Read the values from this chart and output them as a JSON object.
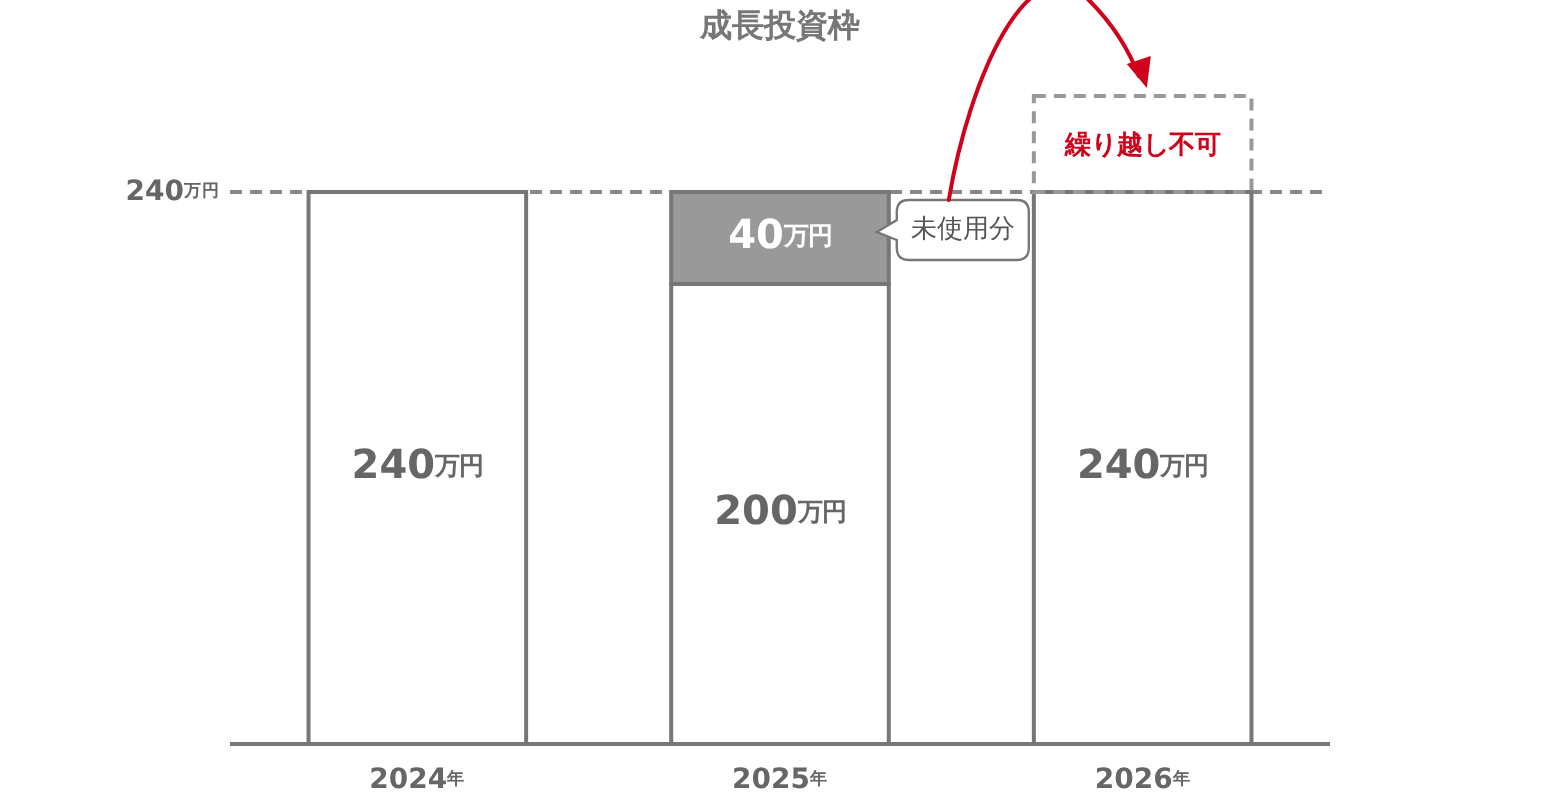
{
  "chart_data": {
    "type": "bar",
    "title": "成長投資枠",
    "categories": [
      "2024年",
      "2025年",
      "2026年"
    ],
    "stacked": true,
    "series": [
      {
        "color": "#ffffff",
        "values": [
          240,
          200,
          240
        ],
        "value_labels": [
          "240万円",
          "200万円",
          "240万円"
        ]
      },
      {
        "color": "#999999",
        "values": [
          null,
          40,
          null
        ],
        "value_labels": [
          null,
          "40万円",
          null
        ]
      }
    ],
    "tick_labels": "x",
    "ref_lines": [
      {
        "axis": "y",
        "value": 240,
        "label": "240万円",
        "color": "#888888",
        "line_style": "dashed"
      }
    ],
    "annotations": [
      "未使用分",
      "繰り越し不可"
    ]
  }
}
